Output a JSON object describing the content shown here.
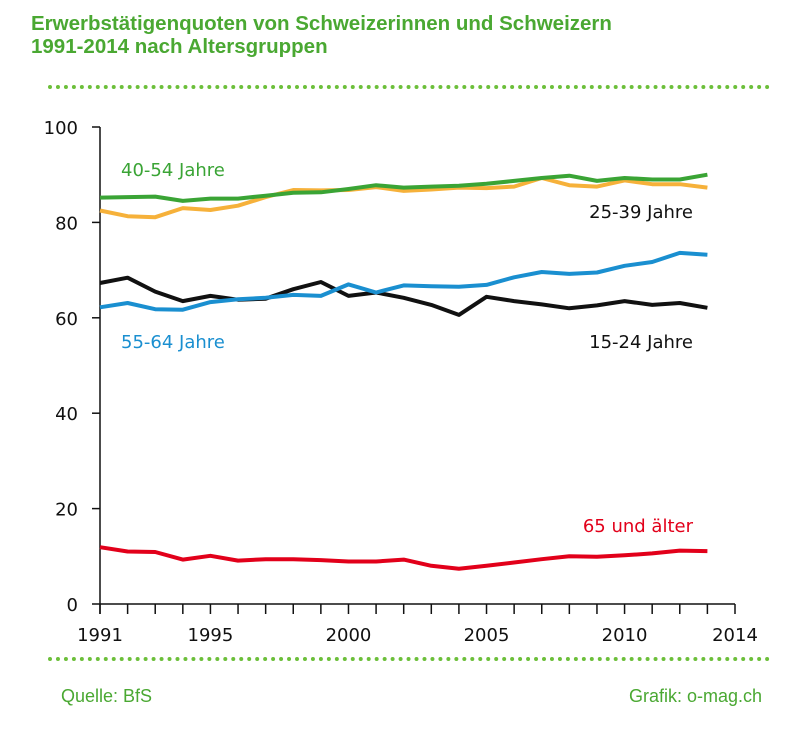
{
  "title_line1": "Erwerbstätigenquoten von Schweizerinnen und Schweizern",
  "title_line2": "1991-2014 nach Altersgruppen",
  "footer_left": "Quelle: BfS",
  "footer_right": "Grafik: o-mag.ch",
  "chart_data": {
    "type": "line",
    "x": [
      1991,
      1992,
      1993,
      1994,
      1995,
      1996,
      1997,
      1998,
      1999,
      2000,
      2001,
      2002,
      2003,
      2004,
      2005,
      2006,
      2007,
      2008,
      2009,
      2010,
      2011,
      2012,
      2013
    ],
    "xlim": [
      1991,
      2014
    ],
    "xticks": [
      1991,
      1995,
      2000,
      2005,
      2010,
      2014
    ],
    "ylim": [
      0,
      100
    ],
    "yticks": [
      0,
      20,
      40,
      60,
      80,
      100
    ],
    "grid": false,
    "series": [
      {
        "name": "40-54 Jahre",
        "color": "#3aa435",
        "values": [
          85.2,
          85.3,
          85.4,
          84.5,
          85.0,
          85.0,
          85.6,
          86.2,
          86.3,
          87.0,
          87.8,
          87.3,
          87.5,
          87.7,
          88.1,
          88.7,
          89.3,
          89.8,
          88.7,
          89.3,
          89.0,
          89.0,
          90.0
        ]
      },
      {
        "name": "25-39 Jahre",
        "color": "#f6b13a",
        "values": [
          82.5,
          81.3,
          81.1,
          83.0,
          82.6,
          83.5,
          85.3,
          86.8,
          86.7,
          86.8,
          87.4,
          86.6,
          86.9,
          87.3,
          87.2,
          87.5,
          89.3,
          87.8,
          87.5,
          88.8,
          88.0,
          88.0,
          87.3
        ]
      },
      {
        "name": "55-64 Jahre",
        "color": "#1a8fd0",
        "values": [
          62.2,
          63.1,
          61.8,
          61.7,
          63.3,
          63.9,
          64.2,
          64.8,
          64.6,
          67.0,
          65.3,
          66.8,
          66.6,
          66.5,
          66.9,
          68.5,
          69.6,
          69.2,
          69.5,
          70.9,
          71.7,
          73.6,
          73.2
        ]
      },
      {
        "name": "15-24 Jahre",
        "color": "#111111",
        "values": [
          67.3,
          68.4,
          65.5,
          63.5,
          64.6,
          63.8,
          64.0,
          66.0,
          67.5,
          64.6,
          65.3,
          64.2,
          62.7,
          60.6,
          64.4,
          63.5,
          62.8,
          62.0,
          62.6,
          63.5,
          62.7,
          63.1,
          62.1
        ]
      },
      {
        "name": "65 und älter",
        "color": "#e2001a",
        "values": [
          11.9,
          11.0,
          10.9,
          9.3,
          10.1,
          9.1,
          9.4,
          9.4,
          9.2,
          8.9,
          8.9,
          9.3,
          8.0,
          7.4,
          8.0,
          8.7,
          9.4,
          10.0,
          9.9,
          10.2,
          10.6,
          11.2,
          11.1
        ]
      }
    ]
  }
}
